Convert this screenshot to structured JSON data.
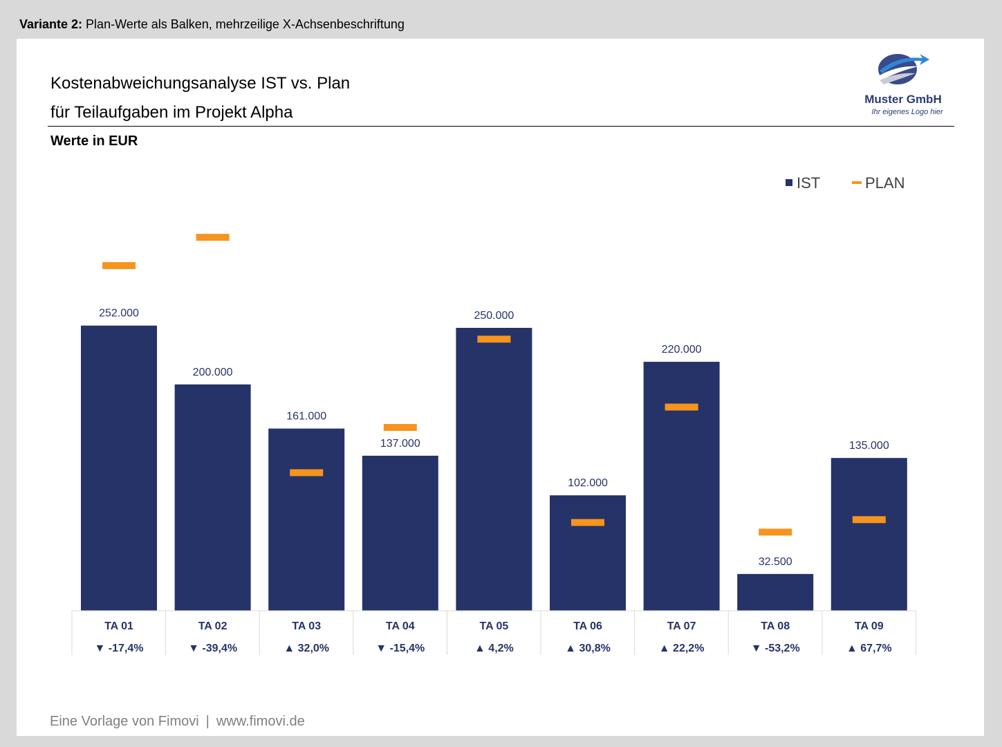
{
  "header": {
    "variant_bold": "Variante 2:",
    "variant_text": " Plan-Werte als Balken, mehrzeilige X-Achsenbeschriftung"
  },
  "title": {
    "line1": "Kostenabweichungsanalyse IST vs. Plan",
    "line2": "für Teilaufgaben im Projekt Alpha"
  },
  "unit_label": "Werte in EUR",
  "logo": {
    "name": "Muster GmbH",
    "tagline": "Ihr eigenes Logo hier"
  },
  "footer": {
    "source": "Eine Vorlage von Fimovi",
    "separator": "|",
    "url": "www.fimovi.de"
  },
  "colors": {
    "ist": "#253368",
    "plan": "#f7941d",
    "axis": "#d9d9d9",
    "label": "#253368"
  },
  "chart_data": {
    "type": "bar",
    "categories": [
      "TA 01",
      "TA 02",
      "TA 03",
      "TA 04",
      "TA 05",
      "TA 06",
      "TA 07",
      "TA 08",
      "TA 09"
    ],
    "series": [
      {
        "name": "IST",
        "values": [
          252000,
          200000,
          161000,
          137000,
          250000,
          102000,
          220000,
          32500,
          135000
        ],
        "labels": [
          "252.000",
          "200.000",
          "161.000",
          "137.000",
          "250.000",
          "102.000",
          "220.000",
          "32.500",
          "135.000"
        ]
      },
      {
        "name": "PLAN",
        "values": [
          305000,
          330000,
          122000,
          162000,
          240000,
          78000,
          180000,
          69500,
          80500
        ]
      }
    ],
    "deviation": [
      {
        "dir": "down",
        "text": "-17,4%"
      },
      {
        "dir": "down",
        "text": "-39,4%"
      },
      {
        "dir": "up",
        "text": "32,0%"
      },
      {
        "dir": "down",
        "text": "-15,4%"
      },
      {
        "dir": "up",
        "text": "4,2%"
      },
      {
        "dir": "up",
        "text": "30,8%"
      },
      {
        "dir": "up",
        "text": "22,2%"
      },
      {
        "dir": "down",
        "text": "-53,2%"
      },
      {
        "dir": "up",
        "text": "67,7%"
      }
    ],
    "ylim": [
      0,
      380000
    ],
    "legend": "top-right",
    "grid": false
  }
}
